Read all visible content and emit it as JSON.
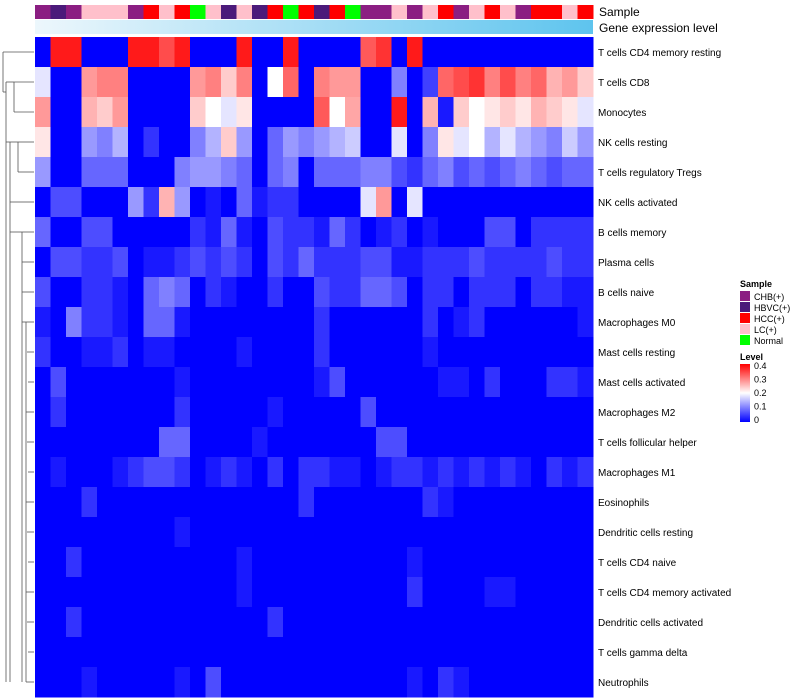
{
  "chart_data": {
    "type": "heatmap",
    "annotation_labels": {
      "sample": "Sample",
      "gene": "Gene expression level"
    },
    "sample_groups": {
      "CHB(+)": "#8B1E82",
      "HBVC(+)": "#4B1A7A",
      "HCC(+)": "#FF0000",
      "LC(+)": "#FFC0CB",
      "Normal": "#00FF00"
    },
    "color_scale": {
      "low": "#0000FF",
      "mid": "#FFFFFF",
      "high": "#FF0000",
      "domain": [
        0,
        0.2,
        0.4
      ]
    },
    "gene_bar_color": "#5EC4EE",
    "samples": [
      "CHB(+)",
      "HBVC(+)",
      "CHB(+)",
      "LC(+)",
      "LC(+)",
      "LC(+)",
      "CHB(+)",
      "HCC(+)",
      "LC(+)",
      "HCC(+)",
      "Normal",
      "LC(+)",
      "HBVC(+)",
      "LC(+)",
      "HBVC(+)",
      "HCC(+)",
      "Normal",
      "HCC(+)",
      "HBVC(+)",
      "HCC(+)",
      "Normal",
      "CHB(+)",
      "CHB(+)",
      "LC(+)",
      "CHB(+)",
      "LC(+)",
      "HCC(+)",
      "CHB(+)",
      "LC(+)",
      "HCC(+)",
      "LC(+)",
      "CHB(+)",
      "HCC(+)",
      "HCC(+)",
      "LC(+)",
      "HCC(+)"
    ],
    "rows": [
      "T cells CD4 memory resting",
      "T cells CD8",
      "Monocytes",
      "NK cells resting",
      "T cells regulatory  Tregs",
      "NK cells activated",
      "B cells memory",
      "Plasma cells",
      "B cells naive",
      "Macrophages M0",
      "Mast cells resting",
      "Mast cells activated",
      "Macrophages M2",
      "T cells follicular helper",
      "Macrophages M1",
      "Eosinophils",
      "Dendritic cells resting",
      "T cells CD4 naive",
      "T cells CD4 memory activated",
      "Dendritic cells activated",
      "T cells gamma delta",
      "Neutrophils"
    ],
    "values": [
      [
        0,
        0.38,
        0.38,
        0,
        0,
        0,
        0.38,
        0.38,
        0.34,
        0.38,
        0,
        0,
        0,
        0.38,
        0,
        0,
        0.38,
        0,
        0,
        0,
        0,
        0.33,
        0.36,
        0,
        0.38,
        0,
        0,
        0,
        0,
        0,
        0,
        0,
        0,
        0,
        0,
        0
      ],
      [
        0.18,
        0,
        0,
        0.28,
        0.3,
        0.3,
        0,
        0,
        0,
        0,
        0.28,
        0.3,
        0.24,
        0.3,
        0,
        0.2,
        0.32,
        0,
        0.3,
        0.28,
        0.28,
        0,
        0,
        0.1,
        0,
        0.05,
        0.32,
        0.34,
        0.36,
        0.3,
        0.34,
        0.3,
        0.32,
        0.26,
        0.28,
        0.24
      ],
      [
        0.28,
        0,
        0,
        0.26,
        0.24,
        0.28,
        0,
        0,
        0,
        0,
        0.24,
        0.2,
        0.18,
        0.22,
        0,
        0,
        0,
        0,
        0.33,
        0.2,
        0.27,
        0,
        0,
        0.38,
        0,
        0.26,
        0.02,
        0.24,
        0.2,
        0.22,
        0.24,
        0.22,
        0.26,
        0.24,
        0.22,
        0.18
      ],
      [
        0.22,
        0,
        0,
        0.12,
        0.1,
        0.14,
        0,
        0.04,
        0,
        0,
        0.1,
        0.14,
        0.24,
        0.12,
        0,
        0.08,
        0.12,
        0.1,
        0.12,
        0.14,
        0.16,
        0,
        0,
        0.18,
        0,
        0.1,
        0.22,
        0.18,
        0.2,
        0.14,
        0.18,
        0.14,
        0.12,
        0.1,
        0.16,
        0.12
      ],
      [
        0.12,
        0,
        0,
        0.08,
        0.08,
        0.08,
        0,
        0,
        0,
        0.1,
        0.12,
        0.12,
        0.1,
        0.08,
        0,
        0.08,
        0.1,
        0,
        0.08,
        0.08,
        0.08,
        0.1,
        0.1,
        0.06,
        0.04,
        0.08,
        0.1,
        0.06,
        0.08,
        0.06,
        0.08,
        0.1,
        0.08,
        0.06,
        0.08,
        0.08
      ],
      [
        0,
        0.06,
        0.06,
        0,
        0,
        0,
        0.12,
        0.04,
        0.26,
        0.12,
        0,
        0.02,
        0,
        0.08,
        0.02,
        0.04,
        0.04,
        0,
        0,
        0,
        0,
        0.18,
        0.28,
        0,
        0.18,
        0,
        0,
        0,
        0,
        0,
        0,
        0,
        0,
        0,
        0,
        0
      ],
      [
        0.08,
        0,
        0,
        0.06,
        0.06,
        0,
        0,
        0,
        0,
        0,
        0.04,
        0.02,
        0.08,
        0.02,
        0,
        0.06,
        0.04,
        0.04,
        0.02,
        0.08,
        0.04,
        0,
        0.02,
        0.04,
        0,
        0.02,
        0,
        0,
        0,
        0.06,
        0.06,
        0,
        0.04,
        0.04,
        0.04,
        0.04
      ],
      [
        0,
        0.06,
        0.06,
        0.04,
        0.04,
        0.06,
        0,
        0.02,
        0.02,
        0.04,
        0.06,
        0.04,
        0.06,
        0.04,
        0,
        0.06,
        0.04,
        0.08,
        0.04,
        0.04,
        0.04,
        0.06,
        0.06,
        0.02,
        0.02,
        0.04,
        0.04,
        0.04,
        0.06,
        0.04,
        0.04,
        0.04,
        0.04,
        0.06,
        0.04,
        0.04
      ],
      [
        0.06,
        0,
        0,
        0.04,
        0.04,
        0.02,
        0,
        0.08,
        0.1,
        0.08,
        0,
        0.04,
        0.02,
        0,
        0,
        0.04,
        0,
        0,
        0.06,
        0.04,
        0.04,
        0.08,
        0.08,
        0.06,
        0,
        0.04,
        0.04,
        0,
        0.04,
        0.04,
        0.04,
        0,
        0.04,
        0.04,
        0.02,
        0.02
      ],
      [
        0.02,
        0,
        0.1,
        0.04,
        0.04,
        0.02,
        0,
        0.08,
        0.08,
        0.02,
        0,
        0,
        0,
        0,
        0,
        0,
        0,
        0,
        0.04,
        0,
        0,
        0,
        0,
        0,
        0,
        0.04,
        0,
        0.02,
        0.04,
        0,
        0,
        0,
        0,
        0,
        0,
        0.02
      ],
      [
        0.04,
        0,
        0,
        0.02,
        0.02,
        0.04,
        0,
        0.02,
        0.02,
        0,
        0,
        0,
        0,
        0.02,
        0,
        0,
        0,
        0,
        0.04,
        0,
        0,
        0,
        0,
        0,
        0,
        0.02,
        0,
        0,
        0,
        0,
        0,
        0,
        0,
        0,
        0,
        0
      ],
      [
        0,
        0.06,
        0,
        0,
        0,
        0,
        0,
        0,
        0,
        0.02,
        0,
        0,
        0,
        0,
        0,
        0,
        0,
        0,
        0.02,
        0.06,
        0,
        0,
        0,
        0,
        0,
        0,
        0.02,
        0.02,
        0,
        0.04,
        0,
        0,
        0,
        0.04,
        0.04,
        0.02
      ],
      [
        0,
        0.04,
        0,
        0,
        0,
        0,
        0,
        0,
        0,
        0.04,
        0,
        0,
        0,
        0,
        0,
        0.02,
        0,
        0,
        0,
        0,
        0,
        0.06,
        0,
        0,
        0,
        0,
        0,
        0,
        0,
        0,
        0,
        0,
        0,
        0,
        0,
        0
      ],
      [
        0,
        0,
        0,
        0,
        0,
        0,
        0,
        0,
        0.08,
        0.08,
        0,
        0,
        0,
        0,
        0.02,
        0,
        0,
        0,
        0,
        0,
        0,
        0,
        0.06,
        0.06,
        0,
        0,
        0,
        0,
        0,
        0,
        0,
        0,
        0,
        0,
        0,
        0
      ],
      [
        0,
        0.02,
        0,
        0,
        0,
        0.02,
        0.04,
        0.06,
        0.06,
        0.04,
        0,
        0.02,
        0.04,
        0.02,
        0,
        0.04,
        0,
        0.04,
        0.04,
        0.02,
        0.02,
        0,
        0.02,
        0.04,
        0.04,
        0.02,
        0.04,
        0.02,
        0.04,
        0.02,
        0.04,
        0.02,
        0,
        0.04,
        0.02,
        0.04
      ],
      [
        0,
        0,
        0,
        0.04,
        0,
        0,
        0,
        0,
        0,
        0,
        0,
        0,
        0,
        0,
        0,
        0,
        0,
        0.04,
        0,
        0,
        0,
        0,
        0,
        0,
        0,
        0.04,
        0.02,
        0,
        0,
        0,
        0,
        0,
        0,
        0,
        0,
        0
      ],
      [
        0,
        0,
        0,
        0,
        0,
        0,
        0,
        0,
        0,
        0.02,
        0,
        0,
        0,
        0,
        0,
        0,
        0,
        0,
        0,
        0,
        0,
        0,
        0,
        0,
        0,
        0,
        0,
        0,
        0,
        0,
        0,
        0,
        0,
        0,
        0,
        0
      ],
      [
        0,
        0,
        0.04,
        0,
        0,
        0,
        0,
        0,
        0,
        0,
        0,
        0,
        0,
        0.02,
        0,
        0,
        0,
        0,
        0,
        0,
        0,
        0,
        0,
        0,
        0.02,
        0,
        0,
        0,
        0,
        0,
        0,
        0,
        0,
        0,
        0,
        0
      ],
      [
        0,
        0,
        0,
        0,
        0,
        0,
        0,
        0,
        0,
        0,
        0,
        0,
        0,
        0.02,
        0,
        0,
        0,
        0,
        0,
        0,
        0,
        0,
        0,
        0,
        0.04,
        0,
        0,
        0,
        0,
        0.02,
        0.02,
        0,
        0,
        0,
        0,
        0
      ],
      [
        0,
        0,
        0.04,
        0,
        0,
        0,
        0,
        0,
        0,
        0,
        0,
        0,
        0,
        0,
        0,
        0.04,
        0,
        0,
        0,
        0,
        0,
        0,
        0,
        0,
        0,
        0,
        0,
        0,
        0,
        0,
        0,
        0,
        0,
        0,
        0,
        0
      ],
      [
        0,
        0,
        0,
        0,
        0,
        0,
        0,
        0,
        0,
        0,
        0,
        0,
        0,
        0,
        0,
        0,
        0,
        0,
        0,
        0,
        0,
        0,
        0,
        0,
        0,
        0,
        0,
        0,
        0,
        0,
        0,
        0,
        0,
        0,
        0,
        0
      ],
      [
        0,
        0,
        0,
        0.02,
        0,
        0,
        0,
        0,
        0,
        0.02,
        0,
        0.06,
        0,
        0,
        0,
        0,
        0,
        0,
        0,
        0,
        0,
        0,
        0,
        0,
        0.02,
        0,
        0.04,
        0.02,
        0,
        0,
        0,
        0,
        0,
        0,
        0,
        0
      ]
    ],
    "legend": {
      "sample_title": "Sample",
      "sample_entries": [
        "CHB(+)",
        "HBVC(+)",
        "HCC(+)",
        "LC(+)",
        "Normal"
      ],
      "level_title": "Level",
      "level_ticks": [
        "0.4",
        "0.3",
        "0.2",
        "0.1",
        "0"
      ]
    }
  }
}
